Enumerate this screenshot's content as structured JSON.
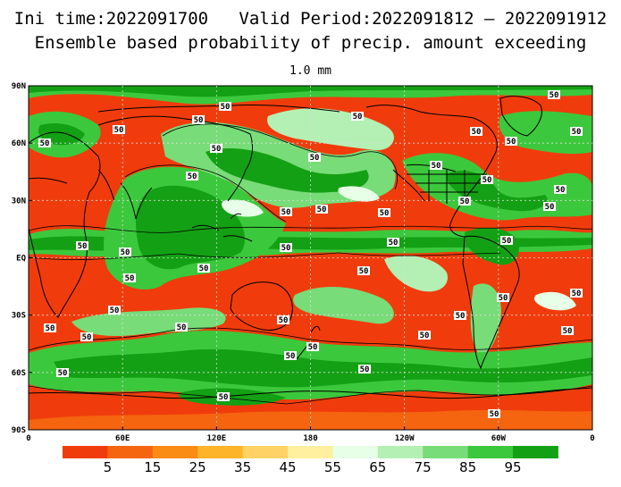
{
  "header": {
    "line1": "Ini time:2022091700   Valid Period:2022091812 – 2022091912",
    "line2": "Ensemble based probability of precip. amount exceeding",
    "threshold": "1.0 mm"
  },
  "axes": {
    "lat_labels": [
      "90N",
      "60N",
      "30N",
      "EQ",
      "30S",
      "60S",
      "90S"
    ],
    "lon_labels": [
      "0",
      "60E",
      "120E",
      "180",
      "120W",
      "60W",
      "0"
    ]
  },
  "contour_label": "50",
  "colorbar": {
    "colors": [
      "#f03c0c",
      "#f5640f",
      "#fa8c14",
      "#fdb428",
      "#fed264",
      "#fff0a0",
      "#e6ffe6",
      "#b4f0b4",
      "#78dc78",
      "#3cc83c",
      "#14a014"
    ],
    "labels": [
      "5",
      "15",
      "25",
      "35",
      "45",
      "55",
      "65",
      "75",
      "85",
      "95"
    ]
  },
  "palette": {
    "land_outline": "#000000",
    "grid": "#cccccc"
  }
}
